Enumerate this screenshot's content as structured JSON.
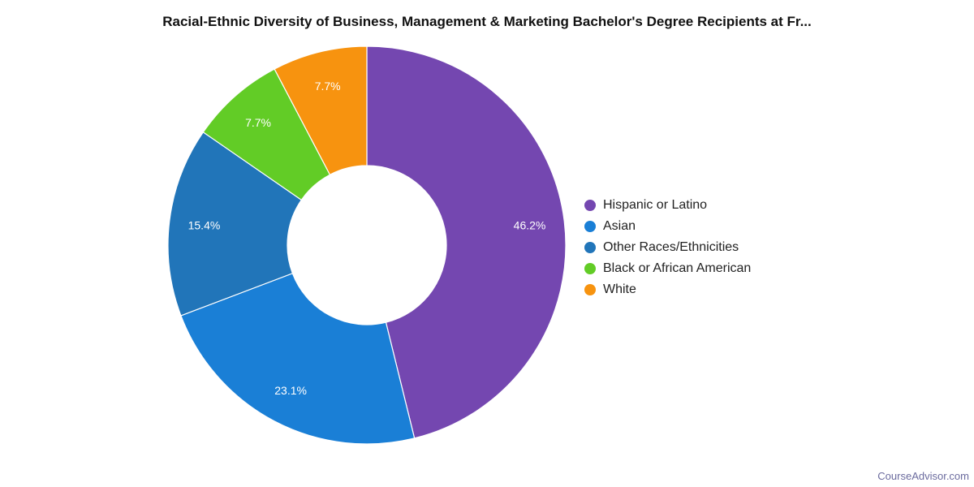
{
  "chart_data": {
    "type": "pie",
    "title": "Racial-Ethnic Diversity of Business, Management & Marketing Bachelor's Degree Recipients at Fr...",
    "legend_position": "right",
    "slices": [
      {
        "label": "Hispanic or Latino",
        "value": 46.2,
        "value_label": "46.2%",
        "color": "#7447b0"
      },
      {
        "label": "Asian",
        "value": 23.1,
        "value_label": "23.1%",
        "color": "#1a7fd6"
      },
      {
        "label": "Other Races/Ethnicities",
        "value": 15.4,
        "value_label": "15.4%",
        "color": "#2175b9"
      },
      {
        "label": "Black or African American",
        "value": 7.7,
        "value_label": "7.7%",
        "color": "#62cc26"
      },
      {
        "label": "White",
        "value": 7.7,
        "value_label": "7.7%",
        "color": "#f7930f"
      }
    ]
  },
  "footer": {
    "brand": "CourseAdvisor.com"
  }
}
